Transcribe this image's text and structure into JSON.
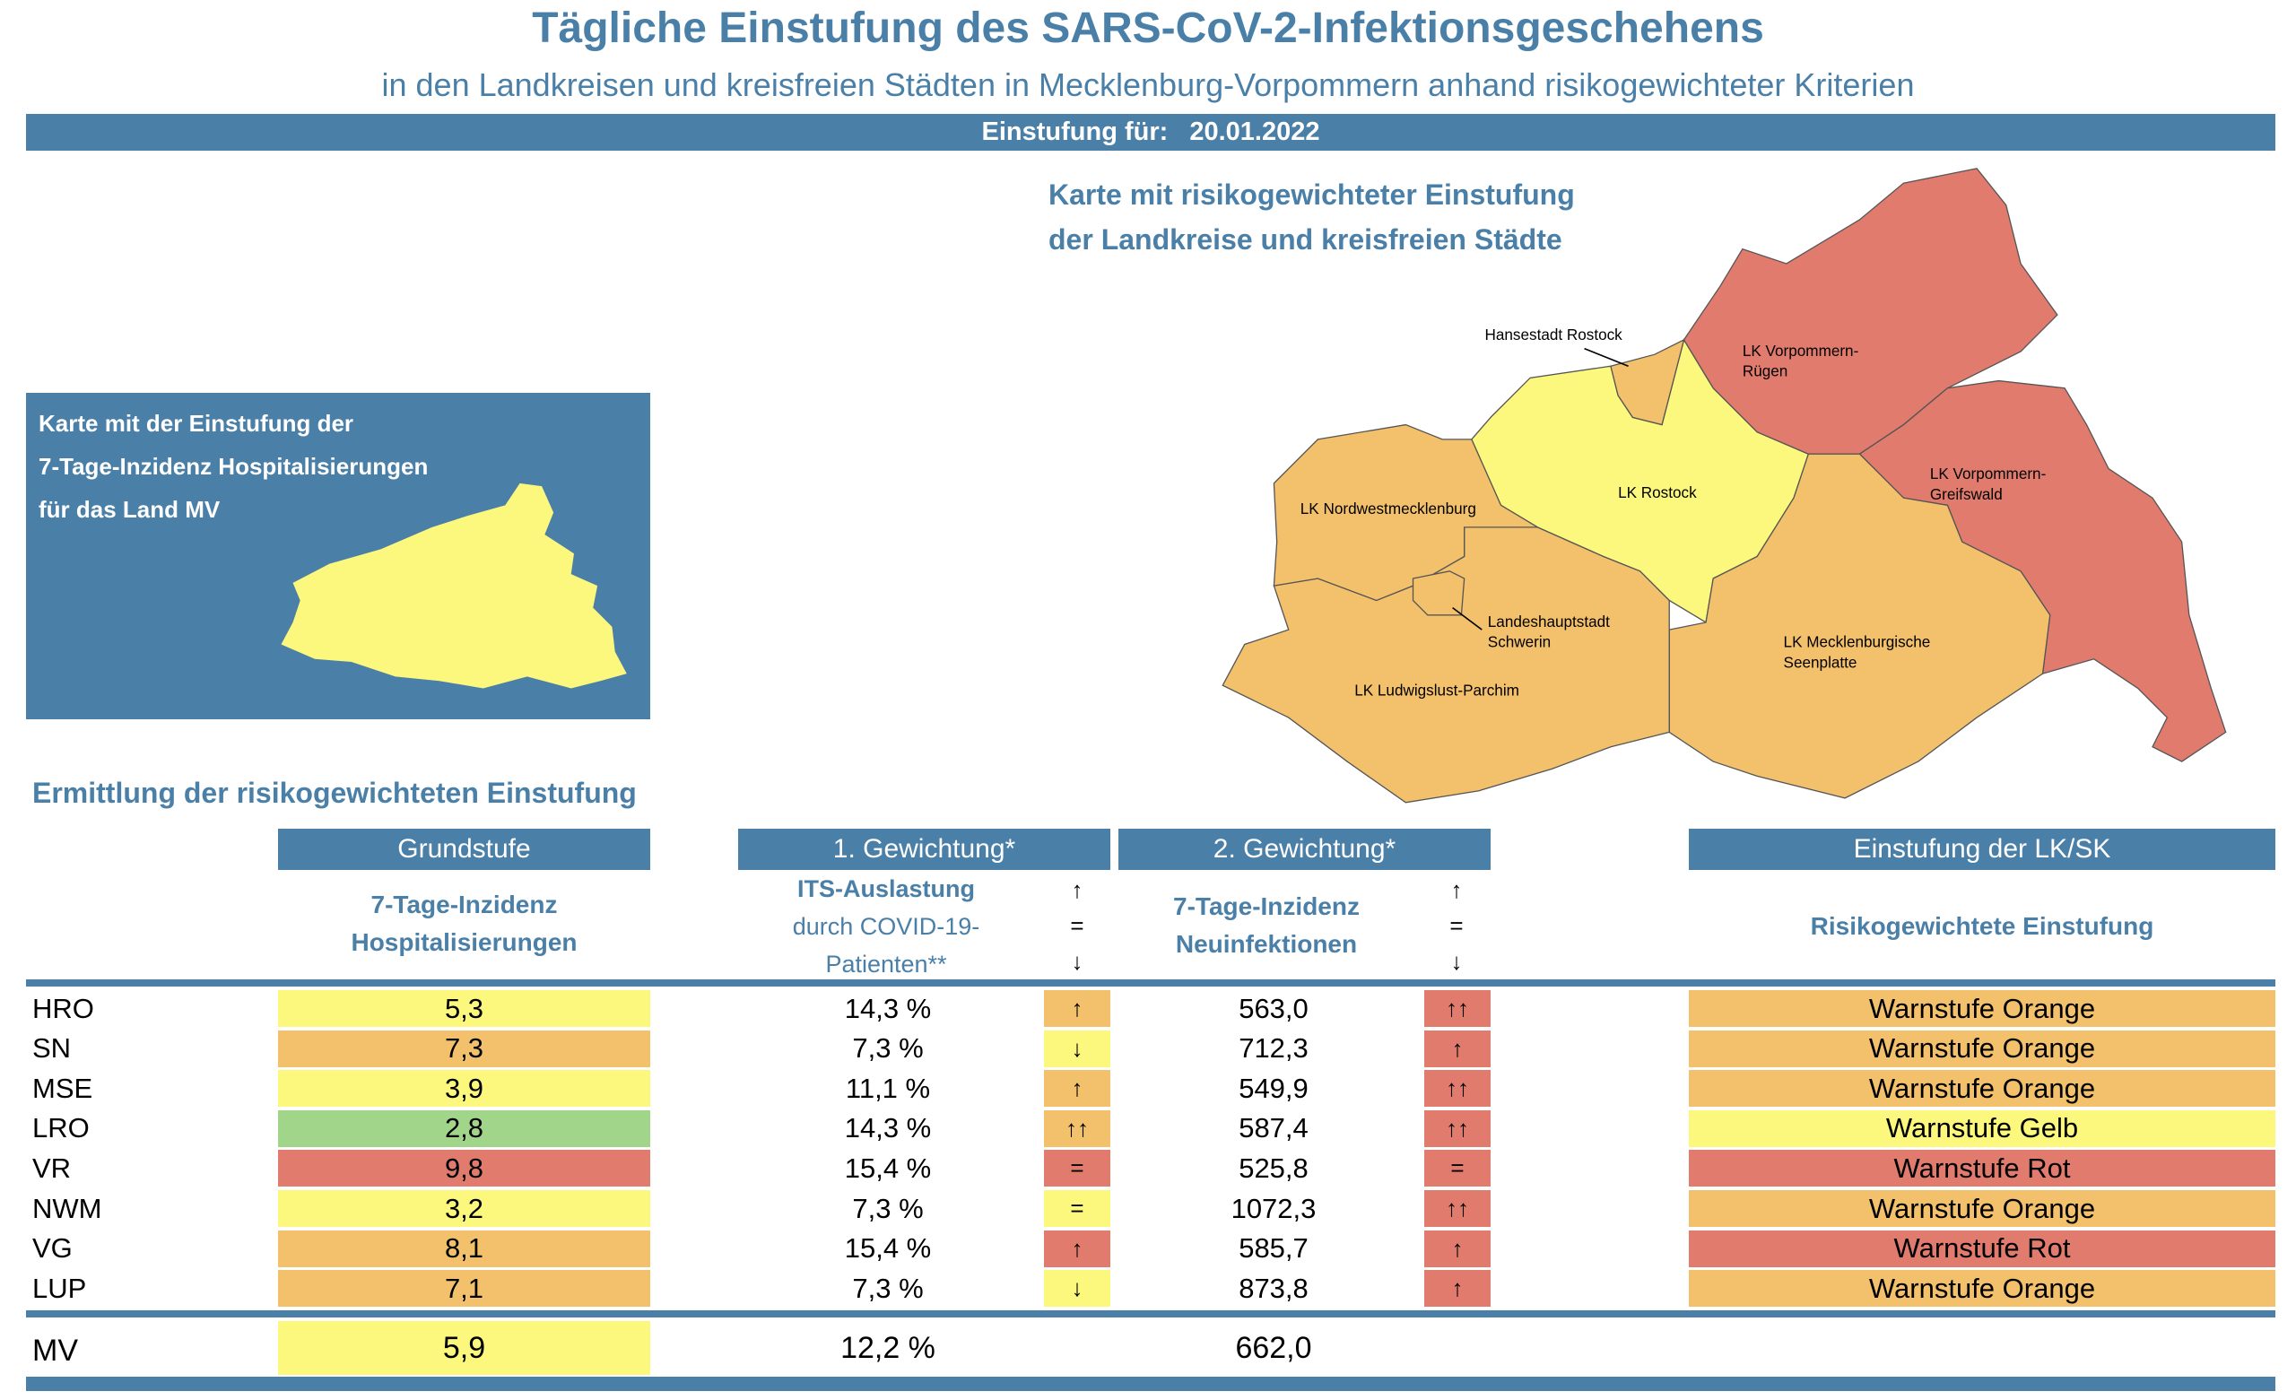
{
  "header": {
    "title": "Tägliche Einstufung des SARS-CoV-2-Infektionsgeschehens",
    "subtitle": "in den Landkreisen und kreisfreien Städten in Mecklenburg-Vorpommern anhand risikogewichteter Kriterien",
    "date_label": "Einstufung für:",
    "date_value": "20.01.2022"
  },
  "map": {
    "title_line1": "Karte mit risikogewichteter Einstufung",
    "title_line2": "der Landkreise und kreisfreien Städte",
    "labels": {
      "hro": "Hansestadt Rostock",
      "vr_1": "LK Vorpommern-",
      "vr_2": "Rügen",
      "vg_1": "LK Vorpommern-",
      "vg_2": "Greifswald",
      "lro": "LK Rostock",
      "nwm": "LK Nordwestmecklenburg",
      "sn_1": "Landeshauptstadt",
      "sn_2": "Schwerin",
      "lup": "LK Ludwigslust-Parchim",
      "mse_1": "LK Mecklenburgische",
      "mse_2": "Seenplatte"
    }
  },
  "small_map": {
    "line1": "Karte mit der Einstufung der",
    "line2": "7-Tage-Inzidenz Hospitalisierungen",
    "line3": "für das Land MV"
  },
  "table": {
    "section_title": "Ermittlung der risikogewichteten Einstufung",
    "headers": {
      "grundstufe": "Grundstufe",
      "gew1": "1. Gewichtung*",
      "gew2": "2. Gewichtung*",
      "einstufung": "Einstufung der LK/SK"
    },
    "subheaders": {
      "hosp_1": "7-Tage-Inzidenz",
      "hosp_2": "Hospitalisierungen",
      "its_1": "ITS-Auslastung",
      "its_2": "durch COVID-19-",
      "its_3": "Patienten**",
      "inz_1": "7-Tage-Inzidenz",
      "inz_2": "Neuinfektionen",
      "trend_up": "↑",
      "trend_eq": "=",
      "trend_down": "↓",
      "einstufung": "Risikogewichtete Einstufung"
    },
    "rows": [
      {
        "code": "HRO",
        "hosp": "5,3",
        "hosp_color": "#fbf87d",
        "its": "14,3 %",
        "its_trend": "↑",
        "its_color": "#f3c16c",
        "inz": "563,0",
        "inz_trend": "↑↑",
        "inz_color": "#e17b6d",
        "level": "Warnstufe Orange",
        "level_color": "#f3c16c"
      },
      {
        "code": "SN",
        "hosp": "7,3",
        "hosp_color": "#f3c16c",
        "its": "7,3 %",
        "its_trend": "↓",
        "its_color": "#fbf87d",
        "inz": "712,3",
        "inz_trend": "↑",
        "inz_color": "#e17b6d",
        "level": "Warnstufe Orange",
        "level_color": "#f3c16c"
      },
      {
        "code": "MSE",
        "hosp": "3,9",
        "hosp_color": "#fbf87d",
        "its": "11,1 %",
        "its_trend": "↑",
        "its_color": "#f3c16c",
        "inz": "549,9",
        "inz_trend": "↑↑",
        "inz_color": "#e17b6d",
        "level": "Warnstufe Orange",
        "level_color": "#f3c16c"
      },
      {
        "code": "LRO",
        "hosp": "2,8",
        "hosp_color": "#a0d58a",
        "its": "14,3 %",
        "its_trend": "↑↑",
        "its_color": "#f3c16c",
        "inz": "587,4",
        "inz_trend": "↑↑",
        "inz_color": "#e17b6d",
        "level": "Warnstufe Gelb",
        "level_color": "#fbf87d"
      },
      {
        "code": "VR",
        "hosp": "9,8",
        "hosp_color": "#e17b6d",
        "its": "15,4 %",
        "its_trend": "=",
        "its_color": "#e17b6d",
        "inz": "525,8",
        "inz_trend": "=",
        "inz_color": "#e17b6d",
        "level": "Warnstufe Rot",
        "level_color": "#e17b6d"
      },
      {
        "code": "NWM",
        "hosp": "3,2",
        "hosp_color": "#fbf87d",
        "its": "7,3 %",
        "its_trend": "=",
        "its_color": "#fbf87d",
        "inz": "1072,3",
        "inz_trend": "↑↑",
        "inz_color": "#e17b6d",
        "level": "Warnstufe Orange",
        "level_color": "#f3c16c"
      },
      {
        "code": "VG",
        "hosp": "8,1",
        "hosp_color": "#f3c16c",
        "its": "15,4 %",
        "its_trend": "↑",
        "its_color": "#e17b6d",
        "inz": "585,7",
        "inz_trend": "↑",
        "inz_color": "#e17b6d",
        "level": "Warnstufe Rot",
        "level_color": "#e17b6d"
      },
      {
        "code": "LUP",
        "hosp": "7,1",
        "hosp_color": "#f3c16c",
        "its": "7,3 %",
        "its_trend": "↓",
        "its_color": "#fbf87d",
        "inz": "873,8",
        "inz_trend": "↑",
        "inz_color": "#e17b6d",
        "level": "Warnstufe Orange",
        "level_color": "#f3c16c"
      }
    ],
    "total": {
      "code": "MV",
      "hosp": "5,9",
      "hosp_color": "#fbf87d",
      "its": "12,2 %",
      "inz": "662,0"
    }
  },
  "colors": {
    "brand_blue": "#4a7fa8",
    "yellow": "#fbf87d",
    "orange": "#f3c16c",
    "red": "#e17b6d",
    "green": "#a0d58a"
  }
}
